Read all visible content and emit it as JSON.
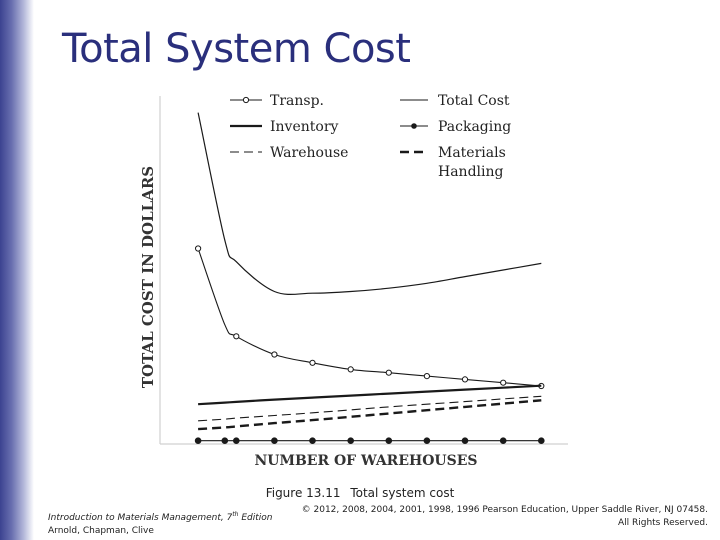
{
  "slide": {
    "title": "Total System Cost"
  },
  "chart_data": {
    "type": "line",
    "xlabel": "NUMBER OF WAREHOUSES",
    "ylabel": "TOTAL COST IN DOLLARS",
    "x_ticks_labeled": false,
    "y_ticks_labeled": false,
    "legend": {
      "placement": "top",
      "entries": [
        {
          "label": "Transp.",
          "style": "line-open-circles"
        },
        {
          "label": "Total Cost",
          "style": "thin-solid"
        },
        {
          "label": "Inventory",
          "style": "thick-solid"
        },
        {
          "label": "Packaging",
          "style": "line-filled-dots"
        },
        {
          "label": "Warehouse",
          "style": "thin-dashed"
        },
        {
          "label": "Materials",
          "label_line2": "Handling",
          "style": "thick-dashed"
        }
      ]
    },
    "x": [
      1,
      1.7,
      2,
      3,
      4,
      5,
      6,
      7,
      8,
      9,
      10
    ],
    "series": [
      {
        "name": "Total Cost",
        "values": [
          100,
          61.5,
          55,
          46,
          45.5,
          46,
          47,
          48.5,
          50.5,
          52.5,
          54.5
        ]
      },
      {
        "name": "Transp.",
        "values": [
          59,
          36,
          32.5,
          27,
          24.5,
          22.5,
          21.5,
          20.5,
          19.5,
          18.5,
          17.5
        ]
      },
      {
        "name": "Inventory",
        "values": [
          12,
          12.5,
          12.7,
          13.4,
          14,
          14.6,
          15.2,
          15.8,
          16.4,
          17,
          17.6
        ]
      },
      {
        "name": "Warehouse",
        "values": [
          7,
          7.5,
          7.8,
          8.6,
          9.4,
          10.3,
          11.2,
          12,
          12.8,
          13.6,
          14.4
        ]
      },
      {
        "name": "Materials Handling",
        "values": [
          4.5,
          5,
          5.3,
          6.3,
          7.2,
          8.2,
          9.2,
          10.2,
          11.2,
          12.2,
          13.2
        ]
      },
      {
        "name": "Packaging",
        "values": [
          1,
          1,
          1,
          1,
          1,
          1,
          1,
          1,
          1,
          1,
          1
        ]
      }
    ],
    "xlim": [
      0,
      10.7
    ],
    "ylim": [
      0,
      105
    ],
    "grid": false
  },
  "caption": {
    "figure_number": "Figure 13.11",
    "text": "Total system cost"
  },
  "footer": {
    "book_title": "Introduction to Materials Management, 7",
    "edition_sup": "th",
    "edition_word": " Edition",
    "authors": "Arnold, Chapman, Clive",
    "copyright": "© 2012, 2008, 2004, 2001, 1998, 1996 Pearson Education, Upper Saddle River, NJ 07458.",
    "rights": "All Rights Reserved."
  },
  "colors": {
    "title": "#2a2f7c",
    "ink": "#1a1a1a",
    "axis": "#d0d0d0"
  }
}
